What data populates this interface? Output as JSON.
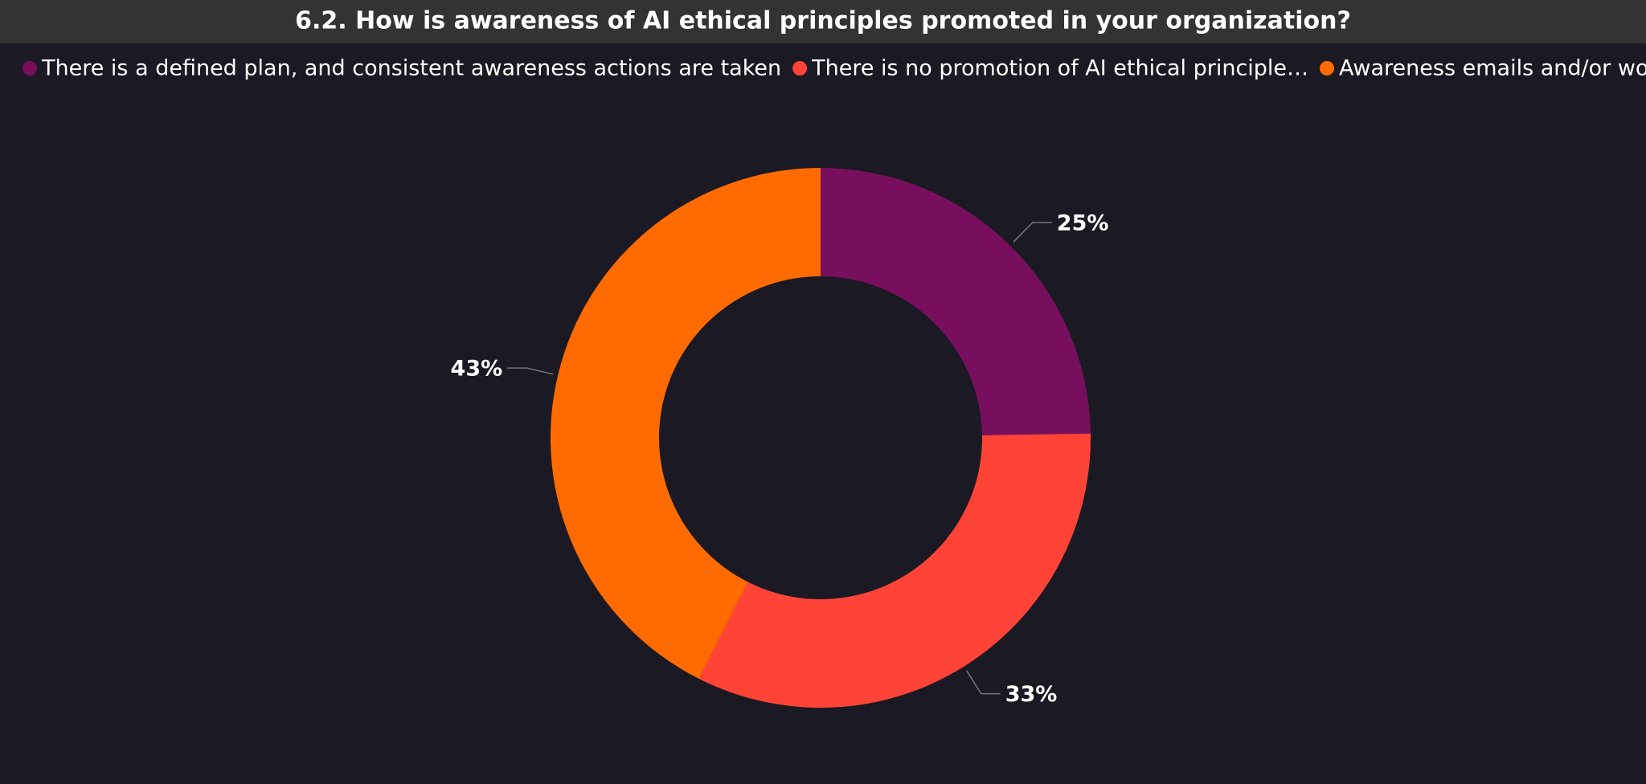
{
  "chart_data": {
    "type": "donut",
    "title": "6.2. How is awareness of AI ethical principles promoted in your organization?",
    "categories": [
      "There is a defined plan, and consistent awareness actions are taken",
      "There is no promotion of AI ethical principle…",
      "Awareness emails and/or works…"
    ],
    "values": [
      25,
      33,
      43
    ],
    "value_labels": [
      "25%",
      "33%",
      "43%"
    ],
    "colors": [
      "#780f5e",
      "#ff4437",
      "#ff6b00"
    ]
  }
}
